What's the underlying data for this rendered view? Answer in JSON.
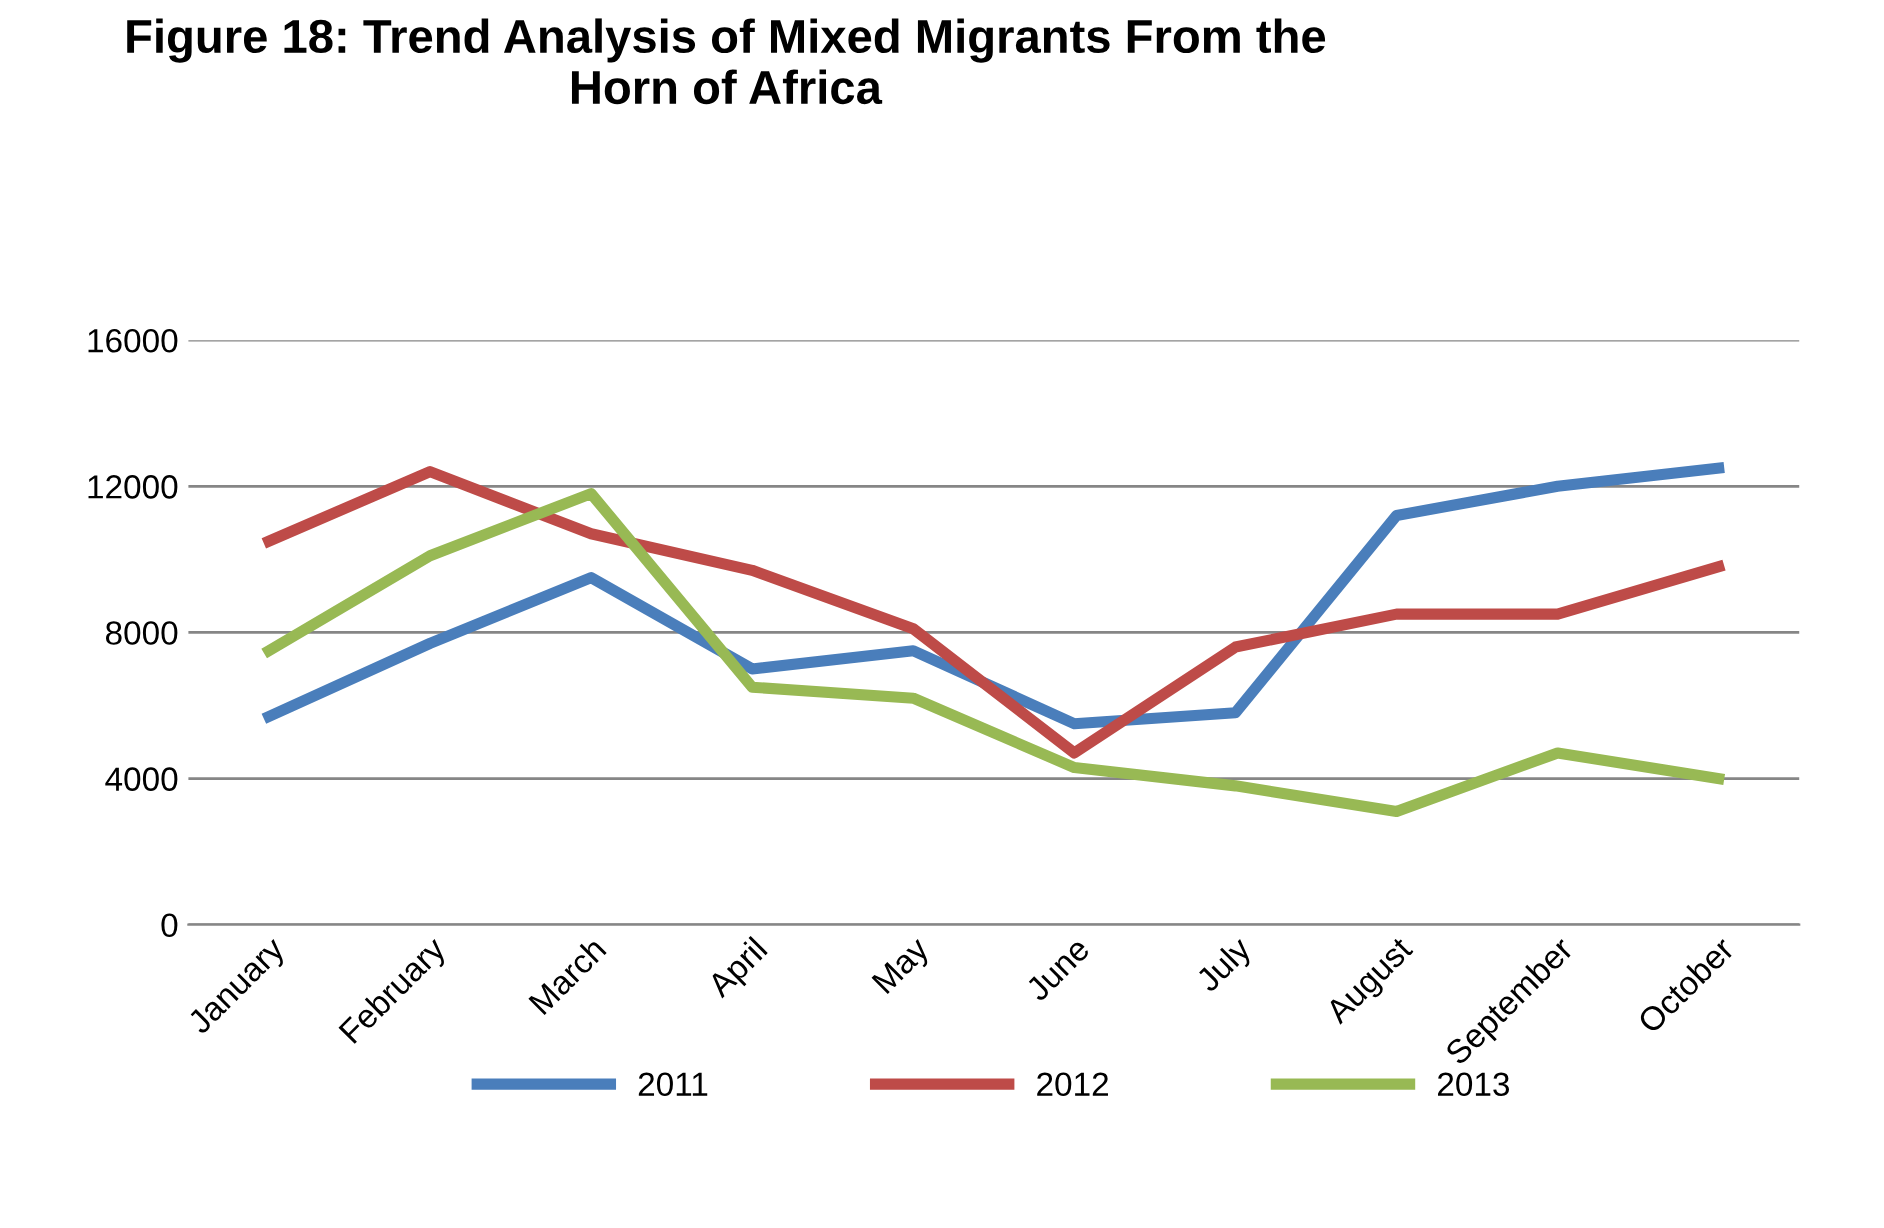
{
  "chart_data": {
    "type": "line",
    "title": "Figure 18: Trend Analysis of Mixed Migrants From the\nHorn of Africa",
    "categories": [
      "January",
      "February",
      "March",
      "April",
      "May",
      "June",
      "July",
      "August",
      "September",
      "October"
    ],
    "series": [
      {
        "name": "2011",
        "color": "#4a7ebb",
        "values": [
          5700,
          7700,
          9500,
          7000,
          7500,
          5500,
          5800,
          11200,
          12000,
          12500
        ]
      },
      {
        "name": "2012",
        "color": "#be4b48",
        "values": [
          10500,
          12400,
          10700,
          9700,
          8100,
          4700,
          7600,
          8500,
          8500,
          9800
        ]
      },
      {
        "name": "2013",
        "color": "#98b954",
        "values": [
          7500,
          10100,
          11800,
          6500,
          6200,
          4300,
          3800,
          3100,
          4700,
          4000
        ]
      }
    ],
    "ylim": [
      0,
      16000
    ],
    "yticks": [
      0,
      4000,
      8000,
      12000,
      16000
    ],
    "grid": "y",
    "legend": "bottom",
    "marker": "none",
    "line_style": "solid"
  }
}
